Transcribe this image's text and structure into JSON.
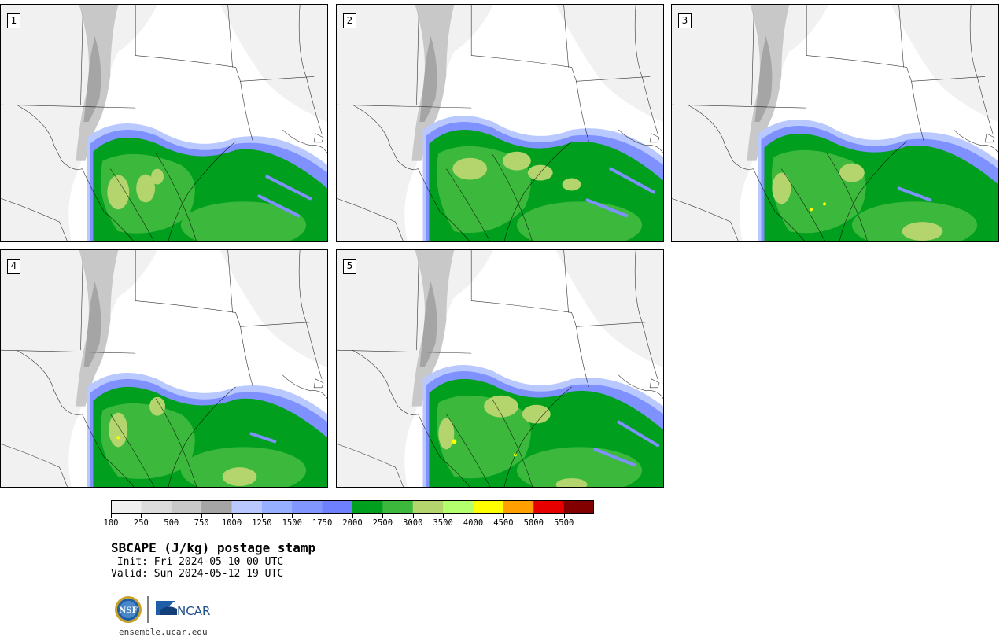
{
  "title": "SBCAPE (J/kg) postage stamp",
  "init_line": " Init: Fri 2024-05-10 00 UTC",
  "valid_line": "Valid: Sun 2024-05-12 19 UTC",
  "url": "ensemble.ucar.edu",
  "logos": {
    "nsf": "NSF",
    "ncar": "NCAR"
  },
  "panels": [
    {
      "label": "1"
    },
    {
      "label": "2"
    },
    {
      "label": "3"
    },
    {
      "label": "4"
    },
    {
      "label": "5"
    }
  ],
  "colorbar": {
    "ticks": [
      "100",
      "250",
      "500",
      "750",
      "1000",
      "1250",
      "1500",
      "1750",
      "2000",
      "2500",
      "3000",
      "3500",
      "4000",
      "4500",
      "5000",
      "5500"
    ],
    "colors": [
      "#f0f0f0",
      "#dcdcdc",
      "#c8c8c8",
      "#a5a5a5",
      "#b9c9ff",
      "#96b0ff",
      "#8296ff",
      "#6f80ff",
      "#00a01e",
      "#3cb93c",
      "#b4d46e",
      "#b4ff6e",
      "#ffff00",
      "#ffa000",
      "#e60000",
      "#820000"
    ]
  },
  "map_colors": {
    "state_line": "#000000",
    "light_gray": "#e6e6e6",
    "mid_gray": "#c8c8c8",
    "dark_gray": "#a5a5a5",
    "blue": "#7f90ff",
    "light_blue": "#b9c9ff",
    "green": "#00a01e",
    "light_green": "#3cb93c",
    "olive": "#b4d46e",
    "yellow": "#ffff00"
  }
}
